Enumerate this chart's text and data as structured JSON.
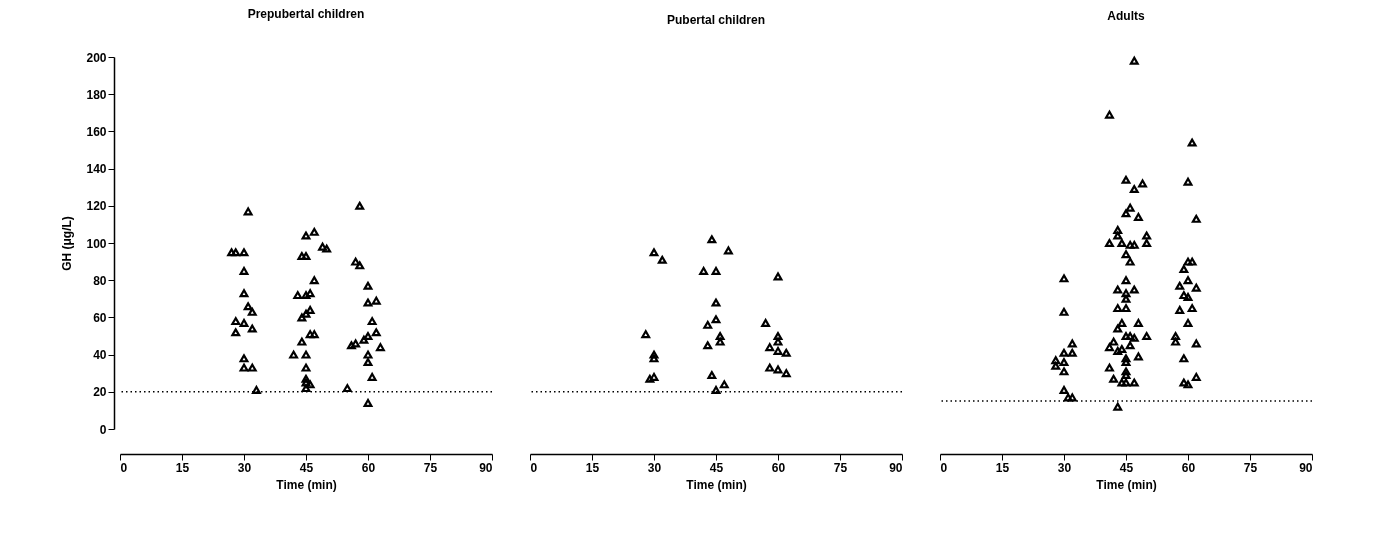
{
  "chart_data": [
    {
      "type": "scatter",
      "title": "Prepubertal children",
      "xlabel": "Time (min)",
      "ylabel": "GH (μg/L)",
      "color": "#000000",
      "marker": "triangle",
      "x": [
        27,
        28,
        30,
        31,
        30,
        30,
        31,
        32,
        28,
        30,
        28,
        32,
        30,
        30,
        32,
        33,
        44,
        45,
        45,
        47,
        49,
        50,
        43,
        45,
        46,
        47,
        46,
        45,
        44,
        44,
        46,
        47,
        45,
        42,
        45,
        45,
        45,
        45,
        46,
        58,
        57,
        58,
        57,
        56,
        55,
        60,
        60,
        62,
        61,
        62,
        63,
        59,
        60,
        60,
        61,
        60,
        60
      ],
      "values": [
        95,
        95,
        95,
        117,
        85,
        73,
        66,
        63,
        58,
        57,
        52,
        54,
        38,
        33,
        33,
        21,
        93,
        93,
        104,
        106,
        98,
        97,
        72,
        72,
        73,
        80,
        64,
        62,
        60,
        47,
        51,
        51,
        40,
        40,
        33,
        27,
        25,
        22,
        24,
        120,
        90,
        88,
        46,
        45,
        22,
        77,
        68,
        69,
        58,
        52,
        44,
        48,
        40,
        36,
        28,
        14,
        50
      ],
      "xlim": [
        0,
        90
      ],
      "xticks": [
        0,
        15,
        30,
        45,
        60,
        75,
        90
      ],
      "ylim": [
        0,
        200
      ],
      "yticks": [
        0,
        20,
        40,
        60,
        80,
        100,
        120,
        140,
        160,
        180,
        200
      ],
      "ref_lines": [
        {
          "axis": "y",
          "value": 20,
          "line_style": "dotted"
        }
      ]
    },
    {
      "type": "scatter",
      "title": "Pubertal children",
      "xlabel": "Time (min)",
      "color": "#000000",
      "marker": "triangle",
      "x": [
        30,
        32,
        28,
        30,
        30,
        30,
        29,
        44,
        48,
        42,
        45,
        45,
        45,
        43,
        46,
        46,
        43,
        44,
        47,
        45,
        57,
        60,
        60,
        60,
        58,
        60,
        62,
        58,
        60,
        62
      ],
      "values": [
        95,
        91,
        51,
        40,
        38,
        28,
        27,
        102,
        96,
        85,
        85,
        68,
        59,
        56,
        50,
        47,
        45,
        29,
        24,
        21,
        57,
        82,
        50,
        47,
        44,
        42,
        41,
        33,
        32,
        30
      ],
      "xlim": [
        0,
        90
      ],
      "xticks": [
        0,
        15,
        30,
        45,
        60,
        75,
        90
      ],
      "ylim": [
        0,
        200
      ],
      "tick_labels": "x",
      "ref_lines": [
        {
          "axis": "y",
          "value": 20,
          "line_style": "dotted"
        }
      ]
    },
    {
      "type": "scatter",
      "title": "Adults",
      "xlabel": "Time (min)",
      "color": "#000000",
      "marker": "triangle",
      "x": [
        32,
        30,
        32,
        28,
        30,
        28,
        30,
        30,
        32,
        31,
        30,
        30,
        47,
        41,
        45,
        47,
        49,
        46,
        45,
        48,
        43,
        43,
        41,
        44,
        46,
        47,
        50,
        50,
        45,
        46,
        45,
        43,
        45,
        47,
        43,
        45,
        45,
        44,
        48,
        43,
        45,
        46,
        47,
        50,
        42,
        41,
        43,
        44,
        46,
        48,
        45,
        45,
        45,
        45,
        41,
        42,
        44,
        45,
        47,
        43,
        61,
        60,
        62,
        60,
        61,
        59,
        58,
        62,
        59,
        60,
        61,
        58,
        60,
        57,
        62,
        59,
        62,
        59,
        60,
        57,
        60
      ],
      "values": [
        46,
        41,
        41,
        37,
        36,
        34,
        31,
        21,
        17,
        17,
        81,
        63,
        198,
        169,
        134,
        129,
        132,
        119,
        116,
        114,
        107,
        104,
        100,
        100,
        99,
        99,
        100,
        104,
        94,
        90,
        80,
        75,
        73,
        75,
        65,
        65,
        70,
        57,
        57,
        54,
        50,
        50,
        49,
        50,
        47,
        44,
        42,
        43,
        45,
        39,
        38,
        36,
        31,
        29,
        33,
        27,
        25,
        25,
        25,
        12,
        154,
        133,
        113,
        90,
        90,
        86,
        77,
        76,
        72,
        71,
        65,
        64,
        57,
        47,
        46,
        38,
        28,
        25,
        24,
        50,
        80
      ],
      "xlim": [
        0,
        90
      ],
      "xticks": [
        0,
        15,
        30,
        45,
        60,
        75,
        90
      ],
      "ylim": [
        0,
        200
      ],
      "tick_labels": "x",
      "ref_lines": [
        {
          "axis": "y",
          "value": 15,
          "line_style": "dotted"
        }
      ]
    }
  ]
}
